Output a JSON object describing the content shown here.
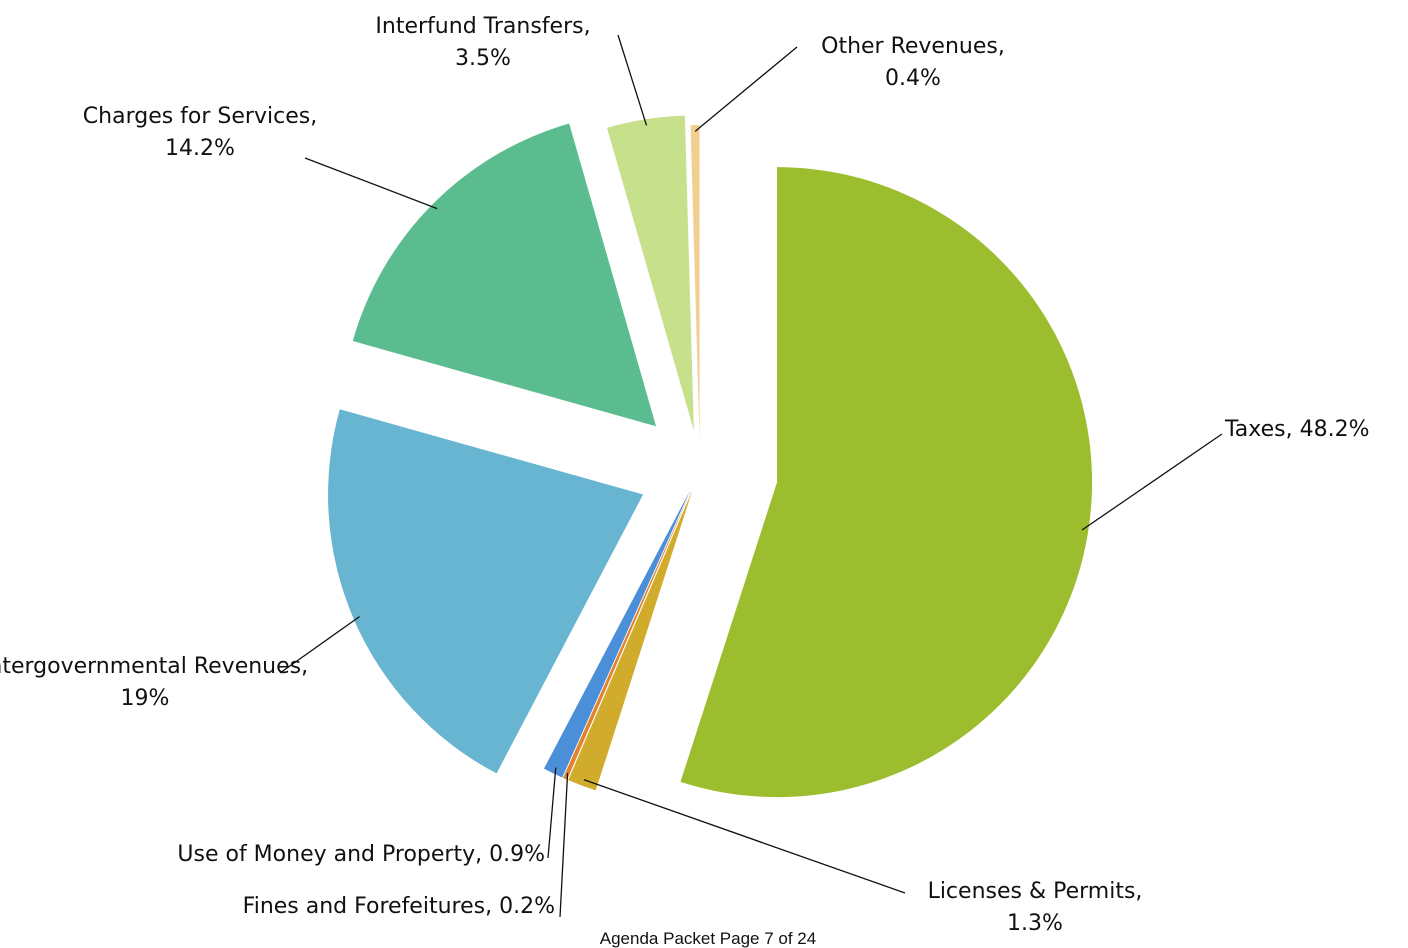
{
  "chart_data": {
    "type": "pie",
    "categories": [
      "Taxes",
      "Licenses & Permits",
      "Fines and Forefeitures",
      "Use of Money and Property",
      "Intergovernmental Revenues",
      "Charges for Services",
      "Interfund Transfers",
      "Other Revenues"
    ],
    "values": [
      48.2,
      1.3,
      0.2,
      0.9,
      19,
      14.2,
      3.5,
      0.4
    ],
    "value_labels": [
      "48.2%",
      "1.3%",
      "0.2%",
      "0.9%",
      "19%",
      "14.2%",
      "3.5%",
      "0.4%"
    ],
    "colors": [
      "#9bbd2e",
      "#d1ab2c",
      "#e2832c",
      "#4a8fd8",
      "#67b5d1",
      "#5bbd8f",
      "#c6e08c",
      "#f1cf8e"
    ]
  },
  "footer": "Agenda Packet Page 7 of 24"
}
